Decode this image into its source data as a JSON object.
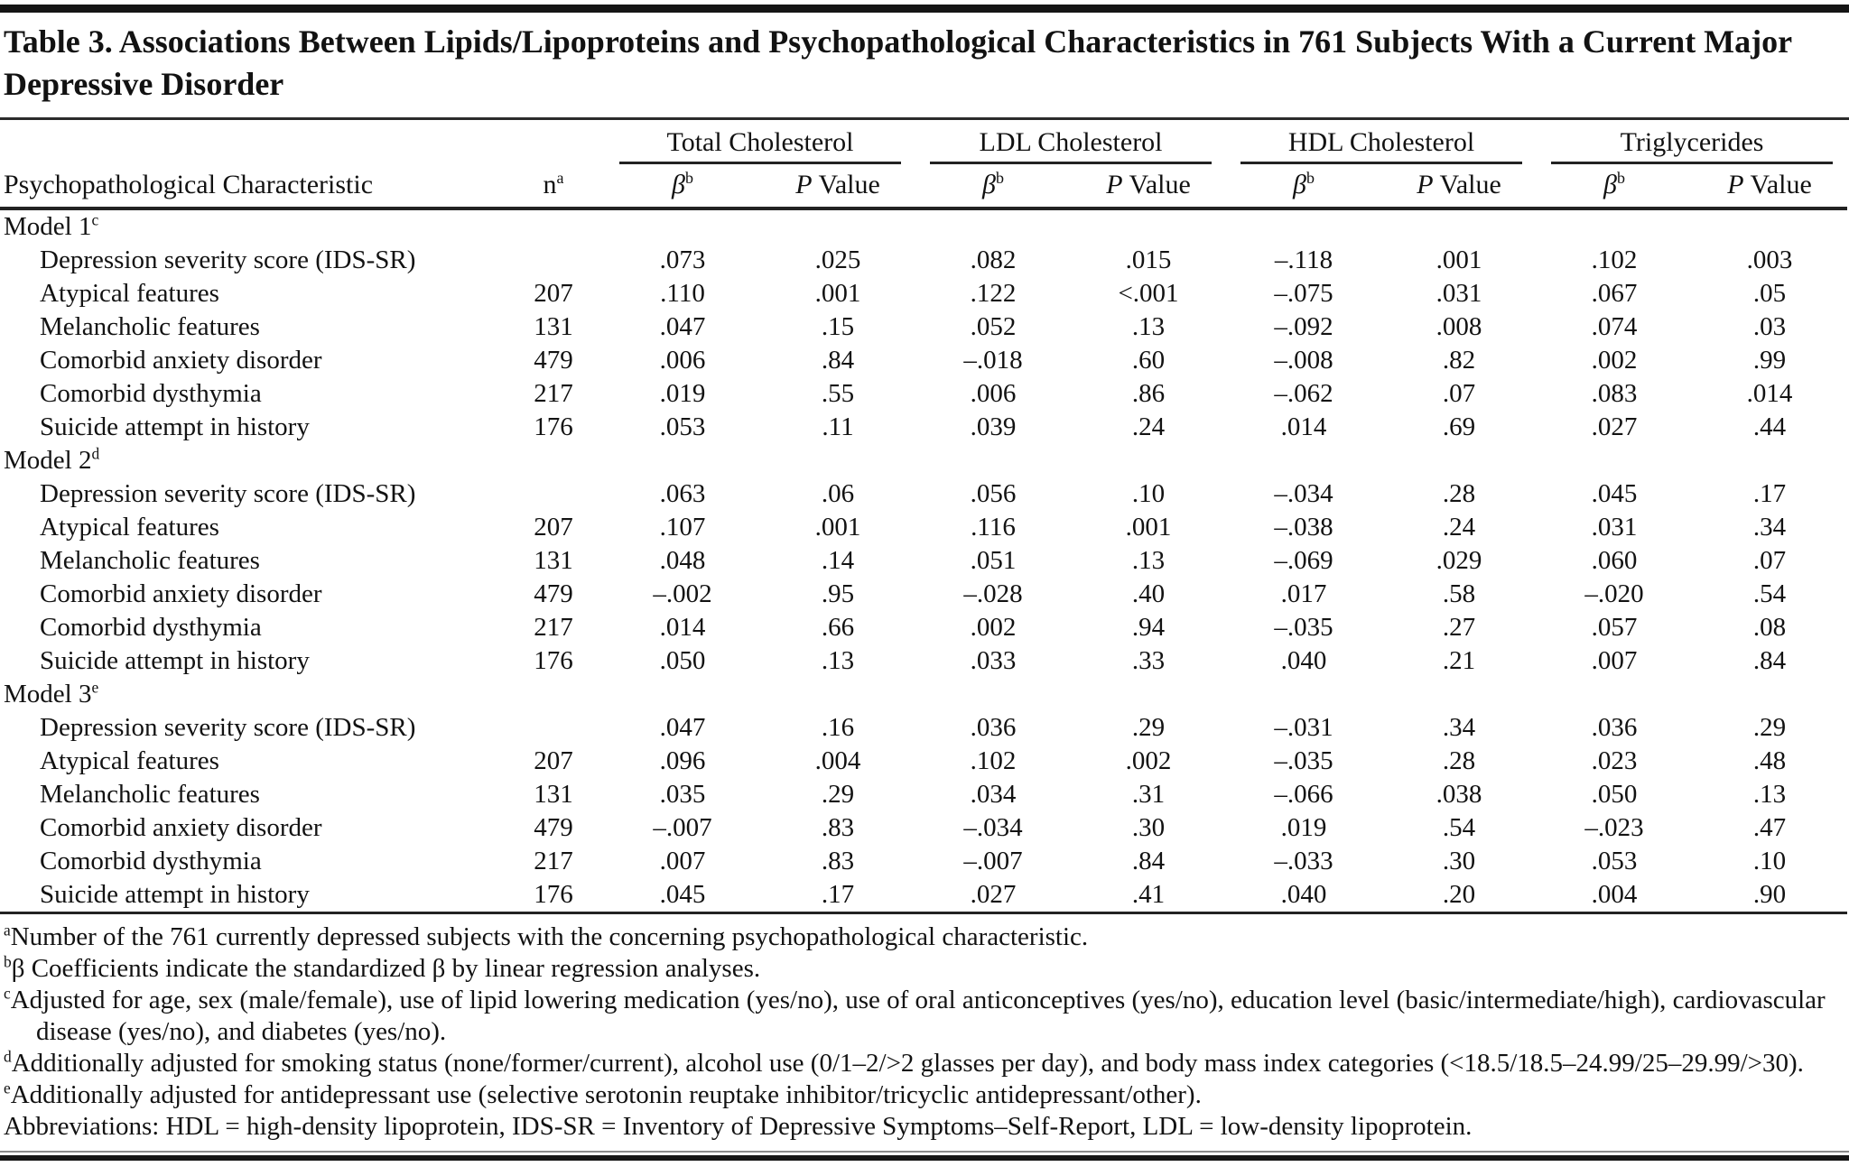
{
  "title": "Table 3. Associations Between Lipids/Lipoproteins and Psychopathological Characteristics in 761 Subjects With a Current Major Depressive Disorder",
  "table": {
    "header": {
      "characteristic": "Psychopathological Characteristic",
      "n_label": "n",
      "n_sup": "a",
      "beta_label": "β",
      "beta_sup": "b",
      "p_italic": "P",
      "p_rest": " Value",
      "groups": [
        "Total Cholesterol",
        "LDL Cholesterol",
        "HDL Cholesterol",
        "Triglycerides"
      ]
    },
    "sections": [
      {
        "label": "Model 1",
        "sup": "c",
        "rows": [
          {
            "characteristic": "Depression severity score (IDS-SR)",
            "n": "",
            "values": [
              ".073",
              ".025",
              ".082",
              ".015",
              "–.118",
              ".001",
              ".102",
              ".003"
            ]
          },
          {
            "characteristic": "Atypical features",
            "n": "207",
            "values": [
              ".110",
              ".001",
              ".122",
              "<.001",
              "–.075",
              ".031",
              ".067",
              ".05"
            ]
          },
          {
            "characteristic": "Melancholic features",
            "n": "131",
            "values": [
              ".047",
              ".15",
              ".052",
              ".13",
              "–.092",
              ".008",
              ".074",
              ".03"
            ]
          },
          {
            "characteristic": "Comorbid anxiety disorder",
            "n": "479",
            "values": [
              ".006",
              ".84",
              "–.018",
              ".60",
              "–.008",
              ".82",
              ".002",
              ".99"
            ]
          },
          {
            "characteristic": "Comorbid dysthymia",
            "n": "217",
            "values": [
              ".019",
              ".55",
              ".006",
              ".86",
              "–.062",
              ".07",
              ".083",
              ".014"
            ]
          },
          {
            "characteristic": "Suicide attempt in history",
            "n": "176",
            "values": [
              ".053",
              ".11",
              ".039",
              ".24",
              ".014",
              ".69",
              ".027",
              ".44"
            ]
          }
        ]
      },
      {
        "label": "Model 2",
        "sup": "d",
        "rows": [
          {
            "characteristic": "Depression severity score (IDS-SR)",
            "n": "",
            "values": [
              ".063",
              ".06",
              ".056",
              ".10",
              "–.034",
              ".28",
              ".045",
              ".17"
            ]
          },
          {
            "characteristic": "Atypical features",
            "n": "207",
            "values": [
              ".107",
              ".001",
              ".116",
              ".001",
              "–.038",
              ".24",
              ".031",
              ".34"
            ]
          },
          {
            "characteristic": "Melancholic features",
            "n": "131",
            "values": [
              ".048",
              ".14",
              ".051",
              ".13",
              "–.069",
              ".029",
              ".060",
              ".07"
            ]
          },
          {
            "characteristic": "Comorbid anxiety disorder",
            "n": "479",
            "values": [
              "–.002",
              ".95",
              "–.028",
              ".40",
              ".017",
              ".58",
              "–.020",
              ".54"
            ]
          },
          {
            "characteristic": "Comorbid dysthymia",
            "n": "217",
            "values": [
              ".014",
              ".66",
              ".002",
              ".94",
              "–.035",
              ".27",
              ".057",
              ".08"
            ]
          },
          {
            "characteristic": "Suicide attempt in history",
            "n": "176",
            "values": [
              ".050",
              ".13",
              ".033",
              ".33",
              ".040",
              ".21",
              ".007",
              ".84"
            ]
          }
        ]
      },
      {
        "label": "Model 3",
        "sup": "e",
        "rows": [
          {
            "characteristic": "Depression severity score (IDS-SR)",
            "n": "",
            "values": [
              ".047",
              ".16",
              ".036",
              ".29",
              "–.031",
              ".34",
              ".036",
              ".29"
            ]
          },
          {
            "characteristic": "Atypical features",
            "n": "207",
            "values": [
              ".096",
              ".004",
              ".102",
              ".002",
              "–.035",
              ".28",
              ".023",
              ".48"
            ]
          },
          {
            "characteristic": "Melancholic features",
            "n": "131",
            "values": [
              ".035",
              ".29",
              ".034",
              ".31",
              "–.066",
              ".038",
              ".050",
              ".13"
            ]
          },
          {
            "characteristic": "Comorbid anxiety disorder",
            "n": "479",
            "values": [
              "–.007",
              ".83",
              "–.034",
              ".30",
              ".019",
              ".54",
              "–.023",
              ".47"
            ]
          },
          {
            "characteristic": "Comorbid dysthymia",
            "n": "217",
            "values": [
              ".007",
              ".83",
              "–.007",
              ".84",
              "–.033",
              ".30",
              ".053",
              ".10"
            ]
          },
          {
            "characteristic": "Suicide attempt in history",
            "n": "176",
            "values": [
              ".045",
              ".17",
              ".027",
              ".41",
              ".040",
              ".20",
              ".004",
              ".90"
            ]
          }
        ]
      }
    ]
  },
  "footnotes": [
    {
      "sup": "a",
      "text": "Number of the 761 currently depressed subjects with the concerning psychopathological characteristic."
    },
    {
      "sup": "b",
      "text": "β Coefficients indicate the standardized β by linear regression analyses."
    },
    {
      "sup": "c",
      "text": "Adjusted for age, sex (male/female), use of lipid lowering medication (yes/no), use of oral anticonceptives (yes/no), education level (basic/intermediate/high), cardiovascular disease (yes/no), and diabetes (yes/no)."
    },
    {
      "sup": "d",
      "text": "Additionally adjusted for smoking status (none/former/current), alcohol use (0/1–2/>2 glasses per day), and body mass index categories (<18.5/18.5–24.99/25–29.99/>30)."
    },
    {
      "sup": "e",
      "text": "Additionally adjusted for antidepressant use (selective serotonin reuptake inhibitor/tricyclic antidepressant/other)."
    },
    {
      "sup": "",
      "text": "Abbreviations: HDL = high-density lipoprotein, IDS-SR = Inventory of Depressive Symptoms–Self-Report, LDL = low-density lipoprotein."
    }
  ]
}
